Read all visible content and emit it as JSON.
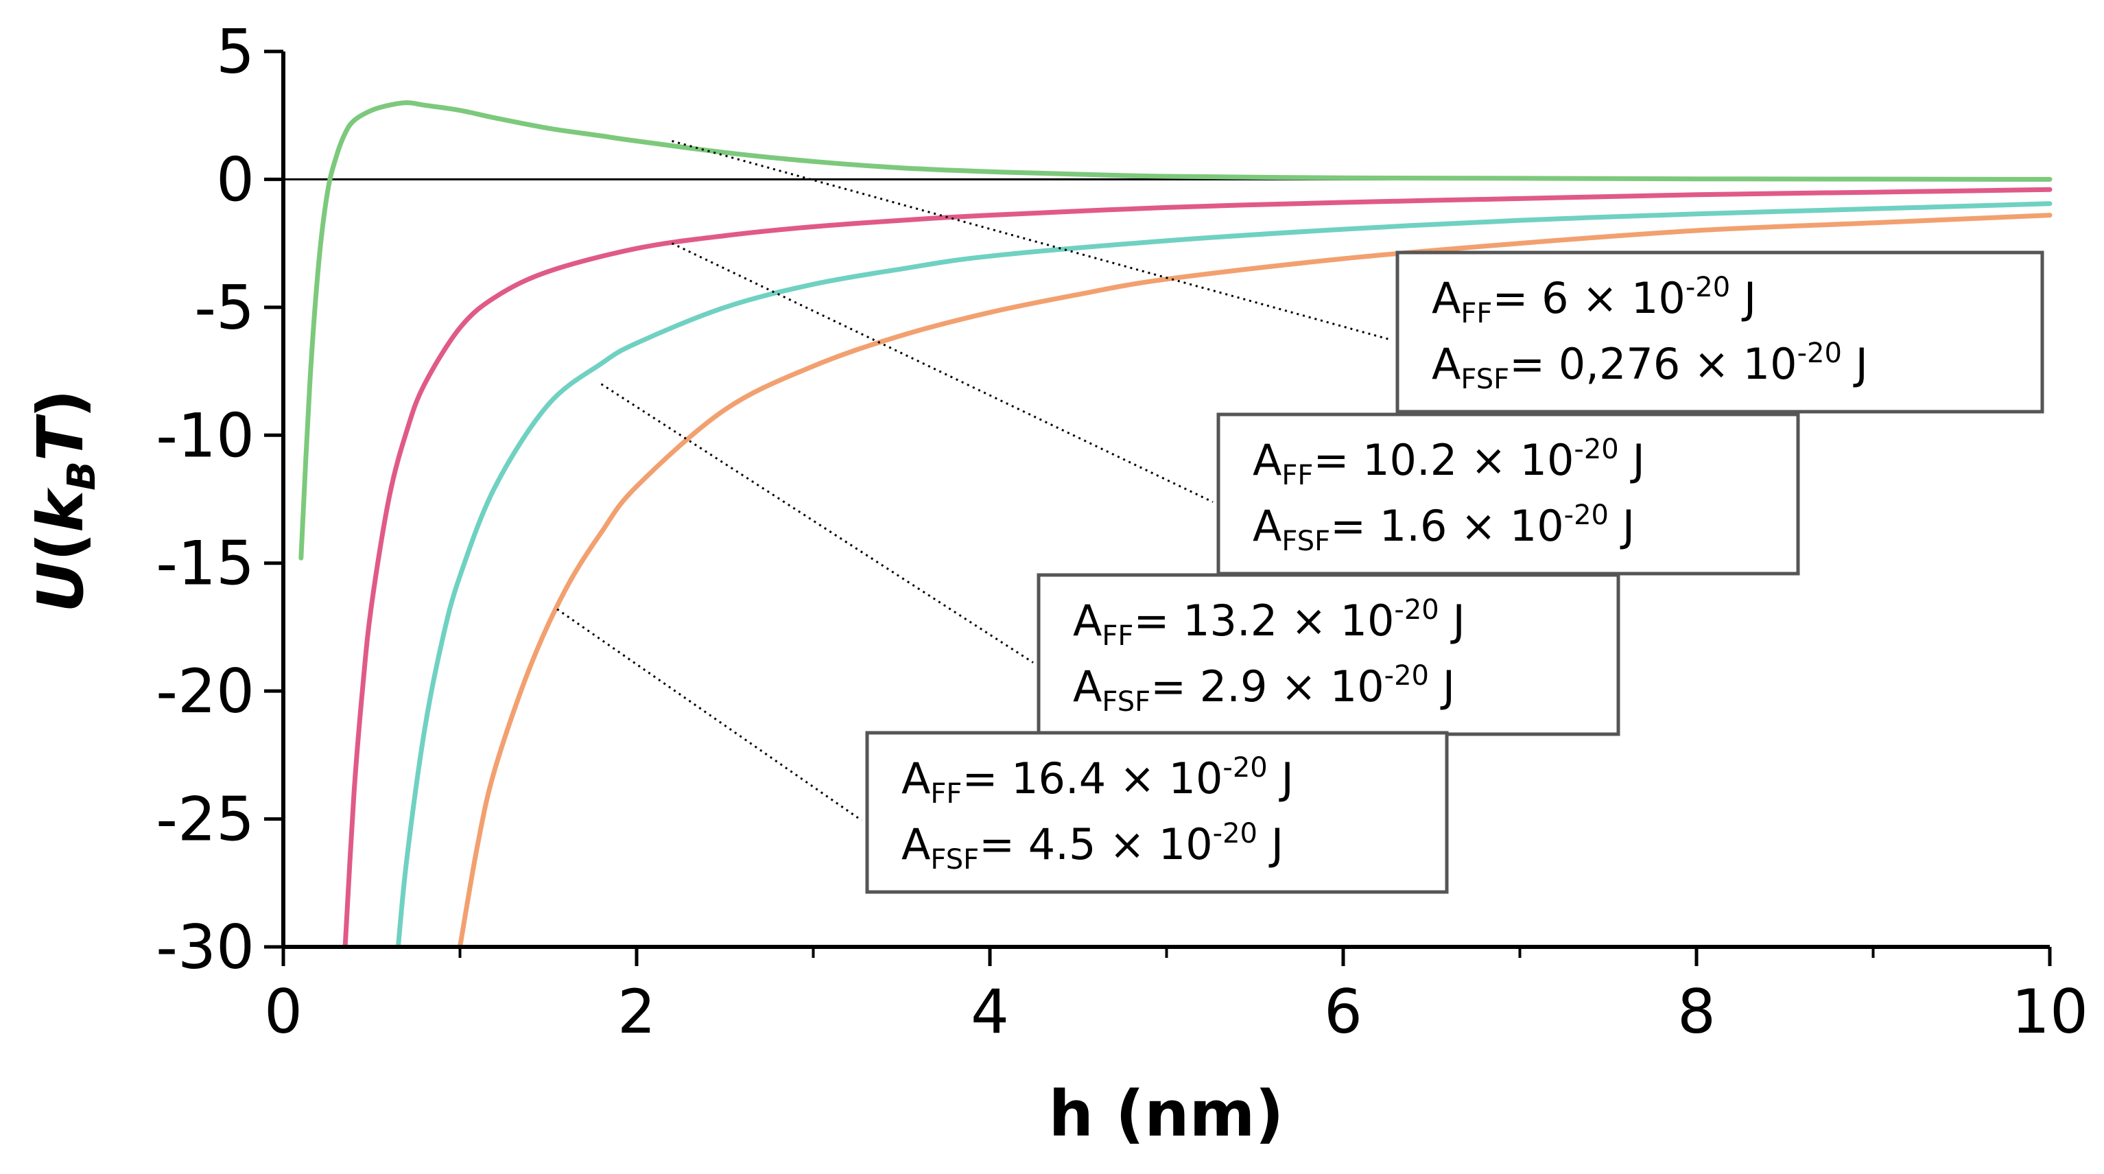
{
  "chart_data": {
    "type": "line",
    "title": "",
    "xlabel": "h (nm)",
    "ylabel_main": "U",
    "ylabel_open": "(",
    "ylabel_k": "k",
    "ylabel_sub": "B",
    "ylabel_T": "T",
    "ylabel_close": ")",
    "xlim": [
      0,
      10
    ],
    "ylim": [
      -30,
      5
    ],
    "x_ticks": [
      0,
      2,
      4,
      6,
      8,
      10
    ],
    "x_tick_labels": [
      "0",
      "2",
      "4",
      "6",
      "8",
      "10"
    ],
    "x_minor_ticks": [
      1,
      3,
      5,
      7,
      9
    ],
    "y_ticks": [
      5,
      0,
      -5,
      -10,
      -15,
      -20,
      -25,
      -30
    ],
    "y_tick_labels": [
      "5",
      "0",
      "-5",
      "-10",
      "-15",
      "-20",
      "-25",
      "-30"
    ],
    "zero_line": true,
    "grid": false,
    "series": [
      {
        "color": "#7cc97c",
        "x": [
          0.1,
          0.15,
          0.2,
          0.25,
          0.3,
          0.35,
          0.4,
          0.5,
          0.6,
          0.7,
          0.8,
          1.0,
          1.2,
          1.5,
          1.8,
          2.0,
          2.5,
          3.0,
          3.5,
          4.0,
          4.5,
          5.0,
          6.0,
          7.0,
          8.0,
          10.0
        ],
        "y": [
          -14.8,
          -8.0,
          -3.3,
          -0.5,
          0.9,
          1.8,
          2.3,
          2.7,
          2.9,
          3.0,
          2.9,
          2.7,
          2.4,
          2.0,
          1.7,
          1.5,
          1.05,
          0.7,
          0.45,
          0.3,
          0.2,
          0.12,
          0.06,
          0.04,
          0.02,
          0.0
        ]
      },
      {
        "color": "#e05a87",
        "x": [
          0.35,
          0.4,
          0.45,
          0.5,
          0.6,
          0.7,
          0.8,
          1.0,
          1.2,
          1.5,
          2.0,
          2.5,
          3.0,
          3.5,
          4.0,
          5.0,
          6.0,
          7.0,
          8.0,
          9.0,
          10.0
        ],
        "y": [
          -30.0,
          -24.0,
          -19.8,
          -16.6,
          -12.4,
          -9.8,
          -8.0,
          -5.8,
          -4.6,
          -3.6,
          -2.7,
          -2.2,
          -1.85,
          -1.6,
          -1.4,
          -1.1,
          -0.9,
          -0.75,
          -0.6,
          -0.5,
          -0.4
        ]
      },
      {
        "color": "#6fd1c1",
        "x": [
          0.65,
          0.7,
          0.8,
          0.9,
          1.0,
          1.2,
          1.5,
          1.8,
          2.0,
          2.5,
          3.0,
          3.5,
          4.0,
          5.0,
          6.0,
          7.0,
          8.0,
          9.0,
          10.0
        ],
        "y": [
          -30.0,
          -26.5,
          -21.5,
          -18.0,
          -15.5,
          -12.0,
          -8.8,
          -7.2,
          -6.4,
          -5.0,
          -4.1,
          -3.5,
          -3.0,
          -2.4,
          -1.95,
          -1.6,
          -1.35,
          -1.15,
          -0.95
        ]
      },
      {
        "color": "#f2a06f",
        "x": [
          1.0,
          1.1,
          1.2,
          1.4,
          1.6,
          1.8,
          2.0,
          2.5,
          3.0,
          3.5,
          4.0,
          4.5,
          5.0,
          6.0,
          7.0,
          8.0,
          9.0,
          10.0
        ],
        "y": [
          -30.0,
          -26.0,
          -23.0,
          -19.0,
          -16.0,
          -13.8,
          -12.0,
          -9.0,
          -7.3,
          -6.1,
          -5.2,
          -4.5,
          -3.9,
          -3.1,
          -2.5,
          -2.0,
          -1.7,
          -1.4
        ]
      }
    ],
    "annotations": [
      {
        "lines": [
          {
            "prefix": "A",
            "sub": "FF",
            "op": "=",
            "value": "6",
            "times": "×",
            "base": "10",
            "exp": "-20",
            "unit": "J"
          },
          {
            "prefix": "A",
            "sub": "FSF",
            "op": "=",
            "value": "0,276",
            "times": "×",
            "base": "10",
            "exp": "-20",
            "unit": "J"
          }
        ],
        "leader_from": [
          2.2,
          1.5
        ]
      },
      {
        "lines": [
          {
            "prefix": "A",
            "sub": "FF",
            "op": "=",
            "value": "10.2",
            "times": "×",
            "base": "10",
            "exp": "-20",
            "unit": "J"
          },
          {
            "prefix": "A",
            "sub": "FSF",
            "op": "=",
            "value": "1.6",
            "times": "×",
            "base": "10",
            "exp": "-20",
            "unit": "J"
          }
        ],
        "leader_from": [
          2.2,
          -2.5
        ]
      },
      {
        "lines": [
          {
            "prefix": "A",
            "sub": "FF",
            "op": "=",
            "value": "13.2",
            "times": "×",
            "base": "10",
            "exp": "-20",
            "unit": "J"
          },
          {
            "prefix": "A",
            "sub": "FSF",
            "op": "=",
            "value": "2.9",
            "times": "×",
            "base": "10",
            "exp": "-20",
            "unit": "J"
          }
        ],
        "leader_from": [
          1.8,
          -8.0
        ]
      },
      {
        "lines": [
          {
            "prefix": "A",
            "sub": "FF",
            "op": "=",
            "value": "16.4",
            "times": "×",
            "base": "10",
            "exp": "-20",
            "unit": "J"
          },
          {
            "prefix": "A",
            "sub": "FSF",
            "op": "=",
            "value": "4.5",
            "times": "×",
            "base": "10",
            "exp": "-20",
            "unit": "J"
          }
        ],
        "leader_from": [
          1.55,
          -16.8
        ]
      }
    ]
  }
}
